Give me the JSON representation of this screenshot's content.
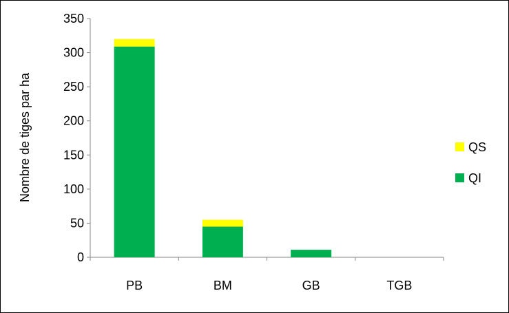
{
  "chart_data": {
    "type": "bar",
    "stacked": true,
    "categories": [
      "PB",
      "BM",
      "GB",
      "TGB"
    ],
    "series": [
      {
        "name": "QI",
        "values": [
          309,
          45,
          11,
          0
        ],
        "color": "#00b050"
      },
      {
        "name": "QS",
        "values": [
          11,
          10,
          0,
          0
        ],
        "color": "#ffff00"
      }
    ],
    "xlabel": "",
    "ylabel": "Nombre de tiges par ha",
    "ylim": [
      0,
      350
    ],
    "yticks": [
      0,
      50,
      100,
      150,
      200,
      250,
      300,
      350
    ],
    "grid": false,
    "legend_position": "right",
    "legend_order": [
      "QS",
      "QI"
    ]
  }
}
